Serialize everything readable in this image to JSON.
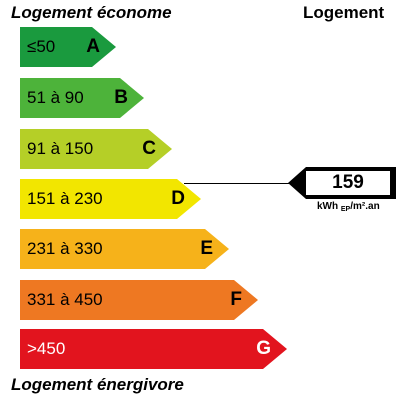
{
  "header": {
    "left_title": "Logement économe",
    "right_title": "Logement"
  },
  "footer": {
    "text": "Logement énergivore"
  },
  "bands": [
    {
      "range": "≤50",
      "letter": "A",
      "color": "#1a9a3e",
      "text_color": "#000000"
    },
    {
      "range": "51 à 90",
      "letter": "B",
      "color": "#4db33a",
      "text_color": "#000000"
    },
    {
      "range": "91 à 150",
      "letter": "C",
      "color": "#b5cf27",
      "text_color": "#000000"
    },
    {
      "range": "151 à 230",
      "letter": "D",
      "color": "#f2e600",
      "text_color": "#000000"
    },
    {
      "range": "231 à 330",
      "letter": "E",
      "color": "#f6b21a",
      "text_color": "#000000"
    },
    {
      "range": "331 à 450",
      "letter": "F",
      "color": "#ee7822",
      "text_color": "#000000"
    },
    {
      "range": ">450",
      "letter": "G",
      "color": "#e2141e",
      "text_color": "#ffffff"
    }
  ],
  "indicator": {
    "value": "159",
    "unit_main": "kWh",
    "unit_sub": "EP",
    "unit_tail": "/m².an",
    "active_letter": "D"
  }
}
